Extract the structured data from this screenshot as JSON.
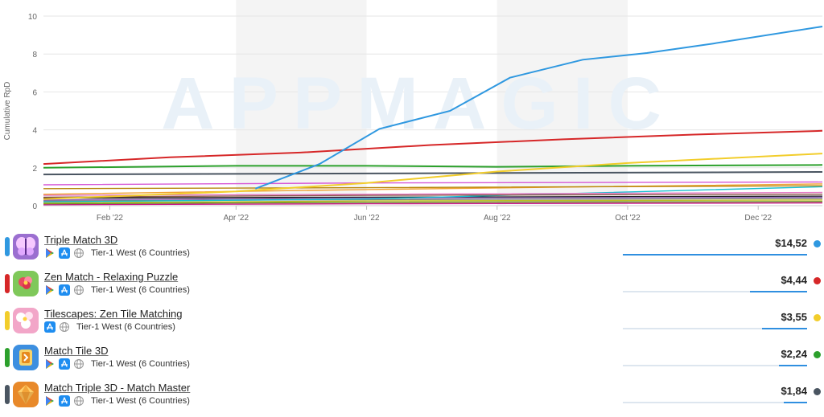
{
  "watermark": "APPMAGIC",
  "chart_data": {
    "type": "line",
    "ylabel": "Cumulative RpD",
    "ylim": [
      0,
      10
    ],
    "yticks": [
      0,
      2,
      4,
      6,
      8,
      10
    ],
    "xlim": [
      "2022-01-01",
      "2022-12-31"
    ],
    "xticks": [
      {
        "date": "2022-02-01",
        "label": "Feb '22"
      },
      {
        "date": "2022-04-01",
        "label": "Apr '22"
      },
      {
        "date": "2022-06-01",
        "label": "Jun '22"
      },
      {
        "date": "2022-08-01",
        "label": "Aug '22"
      },
      {
        "date": "2022-10-01",
        "label": "Oct '22"
      },
      {
        "date": "2022-12-01",
        "label": "Dec '22"
      }
    ],
    "series": [
      {
        "name": "Triple Match 3D",
        "color": "#2f98e0",
        "points": [
          [
            "2022-04-10",
            0.9
          ],
          [
            "2022-05-10",
            2.2
          ],
          [
            "2022-06-07",
            4.05
          ],
          [
            "2022-07-10",
            5.0
          ],
          [
            "2022-08-07",
            6.75
          ],
          [
            "2022-09-10",
            7.7
          ],
          [
            "2022-10-10",
            8.05
          ],
          [
            "2022-11-10",
            8.55
          ],
          [
            "2022-12-31",
            9.45
          ]
        ]
      },
      {
        "name": "Zen Match - Relaxing Puzzle",
        "color": "#d62728",
        "points": [
          [
            "2022-01-01",
            2.2
          ],
          [
            "2022-03-01",
            2.55
          ],
          [
            "2022-05-01",
            2.8
          ],
          [
            "2022-07-01",
            3.2
          ],
          [
            "2022-09-01",
            3.5
          ],
          [
            "2022-11-01",
            3.75
          ],
          [
            "2022-12-31",
            3.95
          ]
        ]
      },
      {
        "name": "Tilescapes: Zen Tile Matching",
        "color": "#f2cd2b",
        "points": [
          [
            "2022-01-01",
            0.35
          ],
          [
            "2022-04-01",
            0.75
          ],
          [
            "2022-06-01",
            1.2
          ],
          [
            "2022-08-01",
            1.8
          ],
          [
            "2022-10-01",
            2.25
          ],
          [
            "2022-12-31",
            2.75
          ]
        ]
      },
      {
        "name": "Match Tile 3D",
        "color": "#2ca02c",
        "points": [
          [
            "2022-01-01",
            2.0
          ],
          [
            "2022-04-01",
            2.1
          ],
          [
            "2022-06-01",
            2.1
          ],
          [
            "2022-08-01",
            2.05
          ],
          [
            "2022-10-01",
            2.1
          ],
          [
            "2022-12-31",
            2.15
          ]
        ]
      },
      {
        "name": "Match Triple 3D - Match Master",
        "color": "#4a5561",
        "points": [
          [
            "2022-01-01",
            1.65
          ],
          [
            "2022-06-01",
            1.7
          ],
          [
            "2022-12-31",
            1.78
          ]
        ]
      },
      {
        "color": "#d65ad6",
        "points": [
          [
            "2022-01-01",
            1.1
          ],
          [
            "2022-06-01",
            1.2
          ],
          [
            "2022-12-31",
            1.25
          ]
        ]
      },
      {
        "color": "#b8860b",
        "points": [
          [
            "2022-01-01",
            0.9
          ],
          [
            "2022-06-01",
            0.95
          ],
          [
            "2022-12-31",
            1.05
          ]
        ]
      },
      {
        "color": "#f0a030",
        "points": [
          [
            "2022-01-01",
            0.6
          ],
          [
            "2022-06-01",
            0.85
          ],
          [
            "2022-12-31",
            1.15
          ]
        ]
      },
      {
        "color": "#e377c2",
        "points": [
          [
            "2022-01-01",
            0.55
          ],
          [
            "2022-06-01",
            0.6
          ],
          [
            "2022-12-31",
            0.7
          ]
        ]
      },
      {
        "color": "#8c564b",
        "points": [
          [
            "2022-01-01",
            0.45
          ],
          [
            "2022-06-01",
            0.55
          ],
          [
            "2022-12-31",
            0.6
          ]
        ]
      },
      {
        "color": "#17becf",
        "points": [
          [
            "2022-01-01",
            0.2
          ],
          [
            "2022-06-01",
            0.35
          ],
          [
            "2022-12-31",
            1.0
          ]
        ]
      },
      {
        "color": "#9467bd",
        "points": [
          [
            "2022-01-01",
            0.3
          ],
          [
            "2022-06-01",
            0.4
          ],
          [
            "2022-12-31",
            0.45
          ]
        ]
      },
      {
        "color": "#7f7f7f",
        "points": [
          [
            "2022-01-01",
            0.25
          ],
          [
            "2022-06-01",
            0.32
          ],
          [
            "2022-12-31",
            0.38
          ]
        ]
      },
      {
        "color": "#1a1a1a",
        "points": [
          [
            "2022-01-01",
            0.4
          ],
          [
            "2022-06-01",
            0.45
          ],
          [
            "2022-12-31",
            0.5
          ]
        ]
      },
      {
        "color": "#bcbd22",
        "points": [
          [
            "2022-01-01",
            0.15
          ],
          [
            "2022-06-01",
            0.25
          ],
          [
            "2022-12-31",
            0.3
          ]
        ]
      },
      {
        "color": "#6b8e23",
        "points": [
          [
            "2022-01-01",
            0.1
          ],
          [
            "2022-06-01",
            0.18
          ],
          [
            "2022-12-31",
            0.22
          ]
        ]
      },
      {
        "color": "#c71585",
        "points": [
          [
            "2022-01-01",
            0.05
          ],
          [
            "2022-06-01",
            0.1
          ],
          [
            "2022-12-31",
            0.15
          ]
        ]
      }
    ]
  },
  "apps": [
    {
      "name": "Triple Match 3D",
      "region": "Tier-1 West (6 Countries)",
      "value": "$14,52",
      "share": 1.0,
      "stores": [
        "google-play",
        "app-store",
        "web"
      ],
      "color": "#2f98e0",
      "icon_bg": "#9b6fd0",
      "icon": "butterfly-icon"
    },
    {
      "name": "Zen Match - Relaxing Puzzle",
      "region": "Tier-1 West (6 Countries)",
      "value": "$4,44",
      "share": 0.31,
      "stores": [
        "google-play",
        "app-store",
        "web"
      ],
      "color": "#d62728",
      "icon_bg": "#7fc85a",
      "icon": "flower-icon"
    },
    {
      "name": "Tilescapes: Zen Tile Matching",
      "region": "Tier-1 West (6 Countries)",
      "value": "$3,55",
      "share": 0.245,
      "stores": [
        "app-store",
        "web"
      ],
      "color": "#f2cd2b",
      "icon_bg": "#f2a6c8",
      "icon": "blossom-icon"
    },
    {
      "name": "Match Tile 3D",
      "region": "Tier-1 West (6 Countries)",
      "value": "$2,24",
      "share": 0.155,
      "stores": [
        "google-play",
        "app-store",
        "web"
      ],
      "color": "#2ca02c",
      "icon_bg": "#3d8fe0",
      "icon": "tile-icon"
    },
    {
      "name": "Match Triple 3D - Match Master",
      "region": "Tier-1 West (6 Countries)",
      "value": "$1,84",
      "share": 0.127,
      "stores": [
        "google-play",
        "app-store",
        "web"
      ],
      "color": "#4a5561",
      "icon_bg": "#e8892a",
      "icon": "gem-icon"
    }
  ]
}
